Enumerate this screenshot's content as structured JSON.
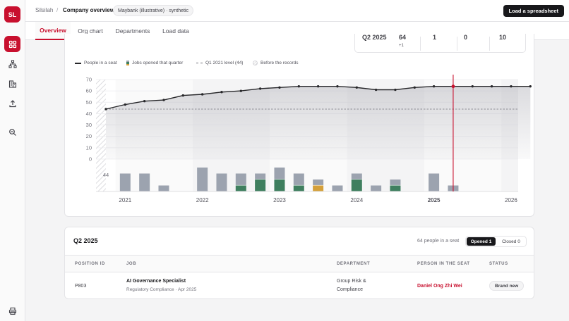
{
  "app": {
    "avatar_initials": "SL",
    "brand_color": "#c8102e"
  },
  "breadcrumb": {
    "root": "Silsilah",
    "separator": "/",
    "page": "Company overview",
    "dataset_pill": "Maybank (illustrative) · synthetic"
  },
  "header": {
    "load_button": "Load a spreadsheet"
  },
  "rail": {
    "items": [
      "grid-icon",
      "org-chart-icon",
      "buildings-icon",
      "upload-icon",
      "search-zoom-icon"
    ],
    "bottom": "printer-icon"
  },
  "tabs": [
    {
      "label": "Overview",
      "active": true
    },
    {
      "label": "Org chart",
      "active": false
    },
    {
      "label": "Departments",
      "active": false
    },
    {
      "label": "Load data",
      "active": false
    }
  ],
  "stats": {
    "quarter": "Q2 2025",
    "people": "64",
    "people_delta": "+1",
    "opened": "1",
    "closed": "0",
    "other": "10"
  },
  "legend": {
    "people": "People in a seat",
    "jobs": "Jobs opened that quarter",
    "baseline": "Q1 2021 level (44)",
    "before": "Before the records"
  },
  "chart_data": {
    "type": "line",
    "ylim": [
      0,
      70
    ],
    "yticks": [
      0,
      10,
      20,
      30,
      40,
      50,
      60,
      70
    ],
    "xtick_labels": [
      "2021",
      "2022",
      "2023",
      "2024",
      "2025",
      "2026"
    ],
    "baseline": 44,
    "baseline_label": "44",
    "selected_quarter": "2025Q2",
    "series": [
      {
        "name": "People in a seat",
        "color": "#27272a",
        "x": [
          "2020Q4",
          "2021Q1",
          "2021Q2",
          "2021Q3",
          "2021Q4",
          "2022Q1",
          "2022Q2",
          "2022Q3",
          "2022Q4",
          "2023Q1",
          "2023Q2",
          "2023Q3",
          "2023Q4",
          "2024Q1",
          "2024Q2",
          "2024Q3",
          "2024Q4",
          "2025Q1",
          "2025Q2",
          "2025Q3",
          "2025Q4",
          "2026Q1",
          "2026Q2"
        ],
        "values": [
          44,
          48,
          51,
          52,
          56,
          57,
          59,
          60,
          62,
          63,
          64,
          64,
          64,
          63,
          61,
          61,
          63,
          64,
          64,
          64,
          64,
          64,
          64
        ]
      }
    ],
    "jobs_opened": {
      "colors": {
        "neutral": "#9ca3af",
        "green": "#3f7f5f",
        "amber": "#d4a03a"
      },
      "bars": [
        {
          "quarter": "2021Q1",
          "total": 3,
          "green": 0,
          "amber": 0
        },
        {
          "quarter": "2021Q2",
          "total": 3,
          "green": 0,
          "amber": 0
        },
        {
          "quarter": "2021Q3",
          "total": 1,
          "green": 0,
          "amber": 0
        },
        {
          "quarter": "2022Q1",
          "total": 4,
          "green": 0,
          "amber": 0
        },
        {
          "quarter": "2022Q2",
          "total": 3,
          "green": 0,
          "amber": 0
        },
        {
          "quarter": "2022Q3",
          "total": 3,
          "green": 1,
          "amber": 0
        },
        {
          "quarter": "2022Q4",
          "total": 3,
          "green": 2,
          "amber": 0
        },
        {
          "quarter": "2023Q1",
          "total": 4,
          "green": 2,
          "amber": 0
        },
        {
          "quarter": "2023Q2",
          "total": 3,
          "green": 1,
          "amber": 0
        },
        {
          "quarter": "2023Q3",
          "total": 2,
          "green": 0,
          "amber": 1
        },
        {
          "quarter": "2023Q4",
          "total": 1,
          "green": 0,
          "amber": 0
        },
        {
          "quarter": "2024Q1",
          "total": 3,
          "green": 2,
          "amber": 0
        },
        {
          "quarter": "2024Q2",
          "total": 1,
          "green": 0,
          "amber": 0
        },
        {
          "quarter": "2024Q3",
          "total": 2,
          "green": 1,
          "amber": 0
        },
        {
          "quarter": "2025Q1",
          "total": 3,
          "green": 0,
          "amber": 0
        },
        {
          "quarter": "2025Q2",
          "total": 1,
          "green": 0,
          "amber": 0
        }
      ]
    }
  },
  "table": {
    "title": "Q2 2025",
    "count_text": "64 people in a seat",
    "toggle": {
      "opened": "Opened 1",
      "closed": "Closed 0",
      "active": "opened"
    },
    "columns": [
      "POSITION ID",
      "JOB",
      "DEPARTMENT",
      "PERSON IN THE SEAT",
      "STATUS"
    ],
    "rows": [
      {
        "position_id": "P803",
        "job_title": "AI Governance Specialist",
        "job_sub": "Regulatory Compliance · Apr 2025",
        "department_line1": "Group Risk &",
        "department_line2": "Compliance",
        "person": "Daniel Ong Zhi Wei",
        "status": "Brand new"
      }
    ]
  }
}
